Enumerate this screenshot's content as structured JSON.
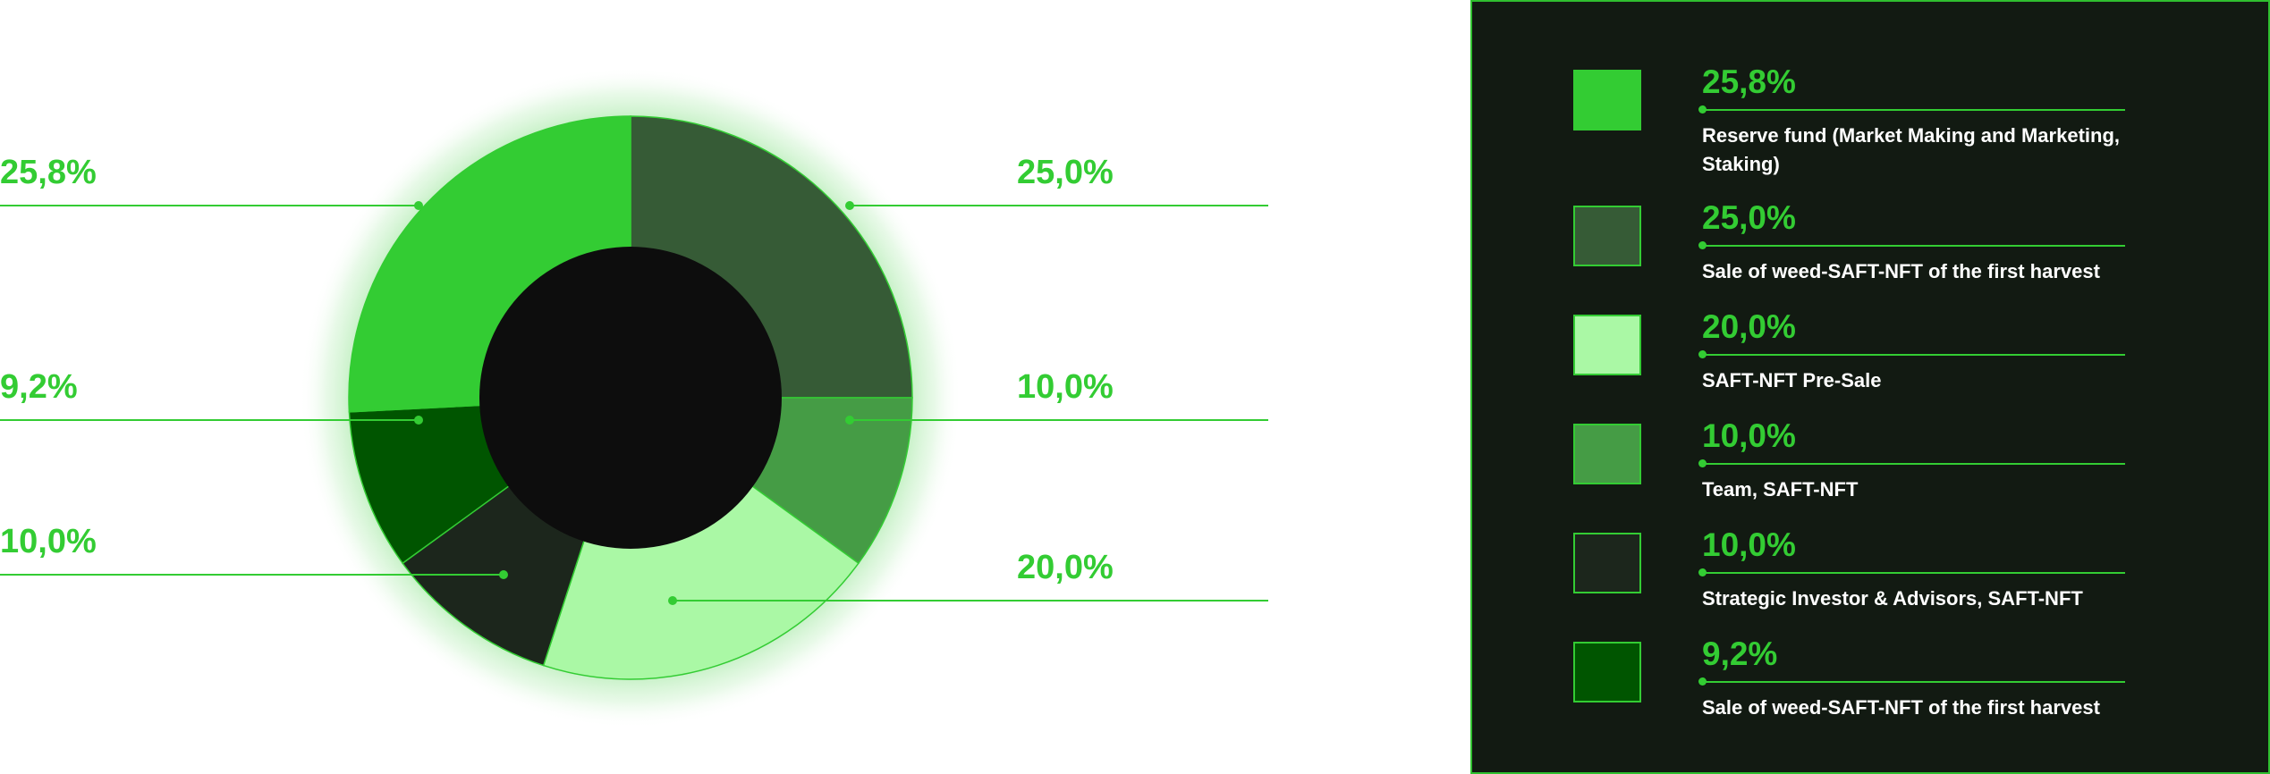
{
  "colors": {
    "accent": "#33cc33",
    "hole": "#0d0d0d",
    "panel_bg": "#121a12"
  },
  "chart_data": {
    "type": "pie",
    "slices": [
      {
        "label": "Reserve fund (Market Making and Marketing, Staking)",
        "value": 25.8,
        "value_label": "25,8%",
        "color": "#33cc33"
      },
      {
        "label": "Sale of weed-SAFT-NFT of the first harvest",
        "value": 25.0,
        "value_label": "25,0%",
        "color": "#365b36"
      },
      {
        "label": "SAFT-NFT Pre-Sale",
        "value": 20.0,
        "value_label": "20,0%",
        "color": "#aaf8a5"
      },
      {
        "label": "Team, SAFT-NFT",
        "value": 10.0,
        "value_label": "10,0%",
        "color": "#459c45"
      },
      {
        "label": "Strategic Investor & Advisors, SAFT-NFT",
        "value": 10.0,
        "value_label": "10,0%",
        "color": "#1c261c"
      },
      {
        "label": "Sale of weed-SAFT-NFT of the first harvest",
        "value": 9.2,
        "value_label": "9,2%",
        "color": "#005500"
      }
    ],
    "legend_placement": "right"
  }
}
